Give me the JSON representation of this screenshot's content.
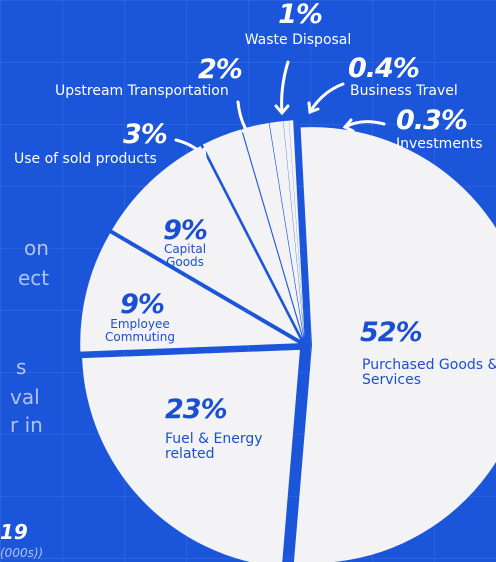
{
  "chart_data": {
    "type": "pie",
    "categories": [
      "Purchased Goods & Services",
      "Fuel & Energy related",
      "Employee Commuting",
      "Capital Goods",
      "Use of sold products",
      "Upstream Transportation",
      "Waste Disposal",
      "Business Travel",
      "Investments"
    ],
    "values": [
      52,
      23,
      9,
      9,
      3,
      2,
      1,
      0.4,
      0.3
    ],
    "value_labels": [
      "52%",
      "23%",
      "9%",
      "9%",
      "3%",
      "2%",
      "1%",
      "0.4%",
      "0.3%"
    ],
    "color": "#f3f3f5",
    "side_text": [
      "on",
      "ect",
      "s",
      "val",
      "r in",
      "19",
      "(000s))"
    ]
  }
}
